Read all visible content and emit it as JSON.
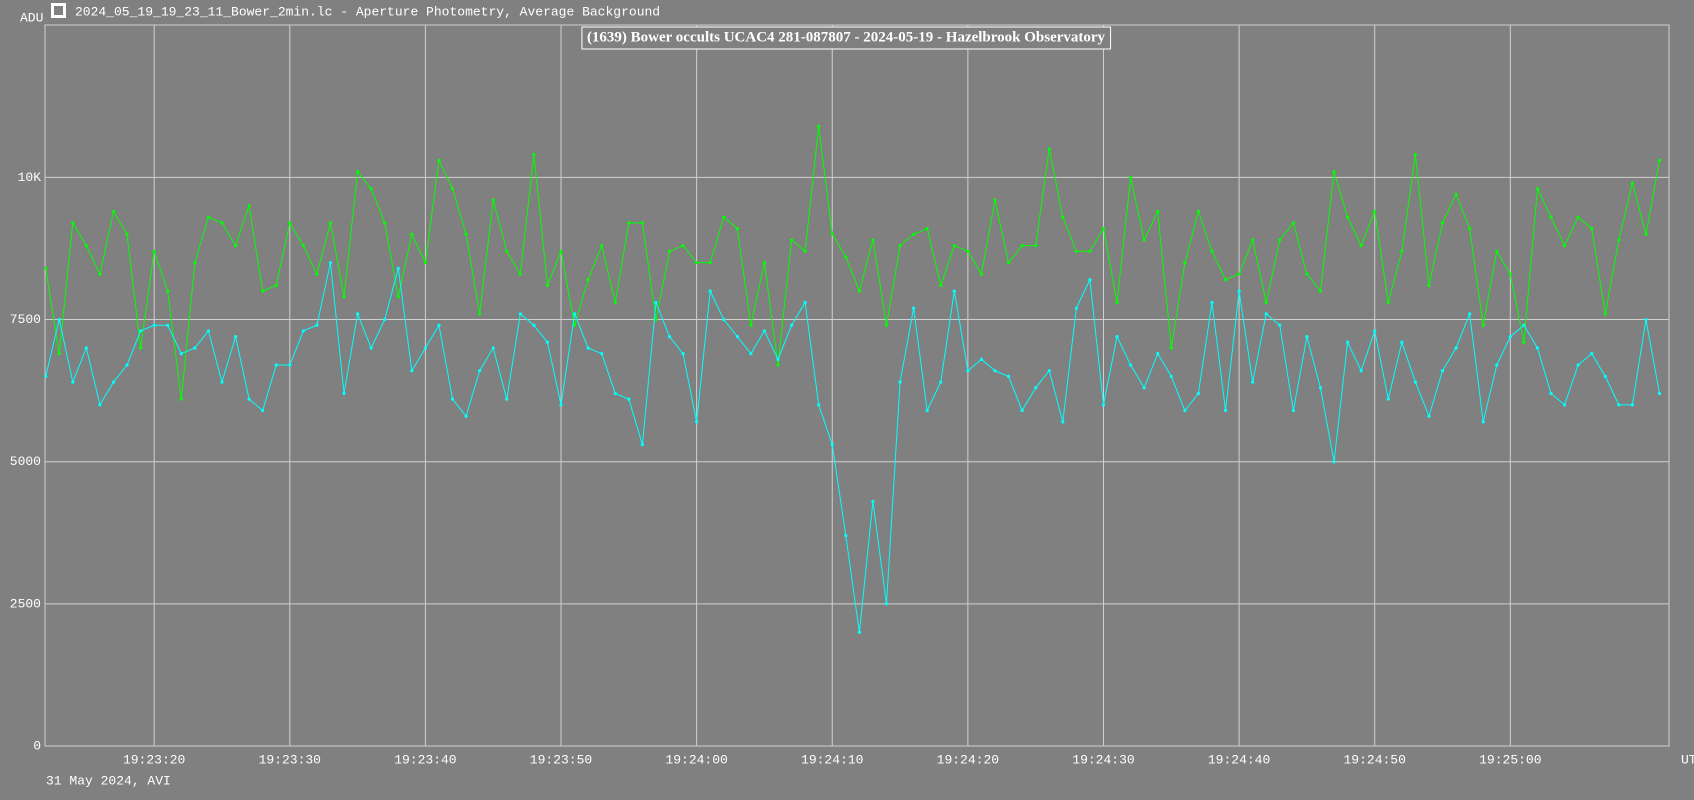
{
  "chart_data": {
    "type": "line",
    "window_title": "2024_05_19_19_23_11_Bower_2min.lc - Aperture Photometry, Average Background",
    "title": "(1639) Bower occults UCAC4 281-087807 - 2024-05-19 - Hazelbrook Observatory",
    "footnote": "31 May 2024, AVI",
    "x_label": "UT",
    "y_label": "ADU",
    "grid": true,
    "x": [
      69792,
      69793,
      69794,
      69795,
      69796,
      69797,
      69798,
      69799,
      69800,
      69801,
      69802,
      69803,
      69804,
      69805,
      69806,
      69807,
      69808,
      69809,
      69810,
      69811,
      69812,
      69813,
      69814,
      69815,
      69816,
      69817,
      69818,
      69819,
      69820,
      69821,
      69822,
      69823,
      69824,
      69825,
      69826,
      69827,
      69828,
      69829,
      69830,
      69831,
      69832,
      69833,
      69834,
      69835,
      69836,
      69837,
      69838,
      69839,
      69840,
      69841,
      69842,
      69843,
      69844,
      69845,
      69846,
      69847,
      69848,
      69849,
      69850,
      69851,
      69852,
      69853,
      69854,
      69855,
      69856,
      69857,
      69858,
      69859,
      69860,
      69861,
      69862,
      69863,
      69864,
      69865,
      69866,
      69867,
      69868,
      69869,
      69870,
      69871,
      69872,
      69873,
      69874,
      69875,
      69876,
      69877,
      69878,
      69879,
      69880,
      69881,
      69882,
      69883,
      69884,
      69885,
      69886,
      69887,
      69888,
      69889,
      69890,
      69891,
      69892,
      69893,
      69894,
      69895,
      69896,
      69897,
      69898,
      69899,
      69900,
      69901,
      69902,
      69903,
      69904,
      69905,
      69906,
      69907,
      69908,
      69909,
      69910,
      69911
    ],
    "series": [
      {
        "color": "#00ff00",
        "values": [
          8400,
          6900,
          9200,
          8800,
          8300,
          9400,
          9000,
          7000,
          8700,
          8000,
          6100,
          8500,
          9300,
          9200,
          8800,
          9500,
          8000,
          8100,
          9200,
          8800,
          8300,
          9200,
          7900,
          10100,
          9800,
          9200,
          7900,
          9000,
          8500,
          10300,
          9800,
          9000,
          7600,
          9600,
          8700,
          8300,
          10400,
          8100,
          8700,
          7400,
          8200,
          8800,
          7800,
          9200,
          9200,
          7500,
          8700,
          8800,
          8500,
          8500,
          9300,
          9100,
          7400,
          8500,
          6700,
          8900,
          8700,
          10900,
          9000,
          8600,
          8000,
          8900,
          7400,
          8800,
          9000,
          9100,
          8100,
          8800,
          8700,
          8300,
          9600,
          8500,
          8800,
          8800,
          10500,
          9300,
          8700,
          8700,
          9100,
          7800,
          10000,
          8900,
          9400,
          7000,
          8500,
          9400,
          8700,
          8200,
          8300,
          8900,
          7800,
          8900,
          9200,
          8300,
          8000,
          10100,
          9300,
          8800,
          9400,
          7800,
          8700,
          10400,
          8100,
          9200,
          9700,
          9100,
          7400,
          8700,
          8300,
          7100,
          9800,
          9300,
          8800,
          9300,
          9100,
          7600,
          8900,
          9900,
          9000,
          10300
        ]
      },
      {
        "color": "#00ffff",
        "values": [
          6500,
          7500,
          6400,
          7000,
          6000,
          6400,
          6700,
          7300,
          7400,
          7400,
          6900,
          7000,
          7300,
          6400,
          7200,
          6100,
          5900,
          6700,
          6700,
          7300,
          7400,
          8500,
          6200,
          7600,
          7000,
          7500,
          8400,
          6600,
          7000,
          7400,
          6100,
          5800,
          6600,
          7000,
          6100,
          7600,
          7400,
          7100,
          6000,
          7600,
          7000,
          6900,
          6200,
          6100,
          5300,
          7800,
          7200,
          6900,
          5700,
          8000,
          7500,
          7200,
          6900,
          7300,
          6800,
          7400,
          7800,
          6000,
          5300,
          3700,
          2000,
          4300,
          2500,
          6400,
          7700,
          5900,
          6400,
          8000,
          6600,
          6800,
          6600,
          6500,
          5900,
          6300,
          6600,
          5700,
          7700,
          8200,
          6000,
          7200,
          6700,
          6300,
          6900,
          6500,
          5900,
          6200,
          7800,
          5900,
          8000,
          6400,
          7600,
          7400,
          5900,
          7200,
          6300,
          5000,
          7100,
          6600,
          7300,
          6100,
          7100,
          6400,
          5800,
          6600,
          7000,
          7600,
          5700,
          6700,
          7200,
          7400,
          7000,
          6200,
          6000,
          6700,
          6900,
          6500,
          6000,
          6000,
          7500,
          6200
        ]
      }
    ],
    "xlim": [
      69791.95,
      69911.7
    ],
    "xticks": [
      {
        "value": 69800,
        "label": "19:23:20"
      },
      {
        "value": 69810,
        "label": "19:23:30"
      },
      {
        "value": 69820,
        "label": "19:23:40"
      },
      {
        "value": 69830,
        "label": "19:23:50"
      },
      {
        "value": 69840,
        "label": "19:24:00"
      },
      {
        "value": 69850,
        "label": "19:24:10"
      },
      {
        "value": 69860,
        "label": "19:24:20"
      },
      {
        "value": 69870,
        "label": "19:24:30"
      },
      {
        "value": 69880,
        "label": "19:24:40"
      },
      {
        "value": 69890,
        "label": "19:24:50"
      },
      {
        "value": 69900,
        "label": "19:25:00"
      }
    ],
    "ylim": [
      0,
      12680
    ],
    "yticks": [
      0,
      2500,
      5000,
      7500,
      {
        "value": 10000,
        "label": "10K"
      }
    ]
  }
}
